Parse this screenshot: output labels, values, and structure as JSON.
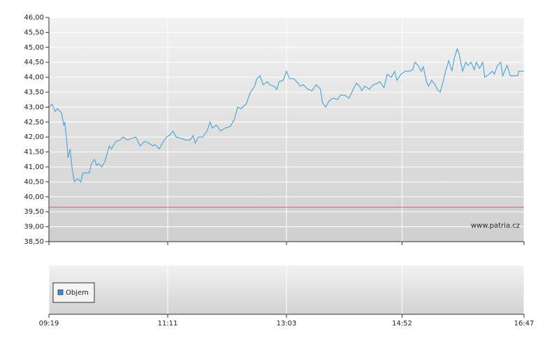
{
  "chart_data": [
    {
      "type": "line",
      "color": "#55a7d6",
      "grid": true,
      "watermark": "www.patria.cz",
      "reference_line": 39.65,
      "reference_color": "#e05a5a",
      "xlim": [
        "09:19",
        "16:47"
      ],
      "xticks": [
        "09:19",
        "11:11",
        "13:03",
        "14:52",
        "16:47"
      ],
      "ylim": [
        38.5,
        46
      ],
      "yticks": [
        {
          "value": 38.5,
          "label": "38,50"
        },
        {
          "value": 39,
          "label": "39,00"
        },
        {
          "value": 39.5,
          "label": "39,50"
        },
        {
          "value": 40,
          "label": "40,00"
        },
        {
          "value": 40.5,
          "label": "40,50"
        },
        {
          "value": 41,
          "label": "41,00"
        },
        {
          "value": 41.5,
          "label": "41,50"
        },
        {
          "value": 42,
          "label": "42,00"
        },
        {
          "value": 42.5,
          "label": "42,50"
        },
        {
          "value": 43,
          "label": "43,00"
        },
        {
          "value": 43.5,
          "label": "43,50"
        },
        {
          "value": 44,
          "label": "44,00"
        },
        {
          "value": 44.5,
          "label": "44,50"
        },
        {
          "value": 45,
          "label": "45,00"
        },
        {
          "value": 45.5,
          "label": "45,50"
        },
        {
          "value": 46,
          "label": "46,00"
        }
      ],
      "x": [
        "09:19",
        "09:22",
        "09:25",
        "09:27",
        "09:31",
        "09:33",
        "09:34",
        "09:36",
        "09:37",
        "09:39",
        "09:41",
        "09:43",
        "09:46",
        "09:49",
        "09:51",
        "09:57",
        "09:59",
        "10:02",
        "10:04",
        "10:06",
        "10:09",
        "10:12",
        "10:16",
        "10:18",
        "10:22",
        "10:26",
        "10:29",
        "10:33",
        "10:37",
        "10:41",
        "10:45",
        "10:49",
        "10:53",
        "10:57",
        "10:59",
        "11:03",
        "11:06",
        "11:10",
        "11:14",
        "11:16",
        "11:19",
        "11:24",
        "11:28",
        "11:32",
        "11:35",
        "11:37",
        "11:40",
        "11:44",
        "11:48",
        "11:51",
        "11:53",
        "11:57",
        "12:01",
        "12:05",
        "12:10",
        "12:14",
        "12:17",
        "12:20",
        "12:25",
        "12:29",
        "12:33",
        "12:35",
        "12:38",
        "12:41",
        "12:45",
        "12:47",
        "12:51",
        "12:54",
        "12:56",
        "13:00",
        "13:03",
        "13:06",
        "13:10",
        "13:14",
        "13:16",
        "13:19",
        "13:23",
        "13:27",
        "13:31",
        "13:35",
        "13:37",
        "13:40",
        "13:43",
        "13:47",
        "13:51",
        "13:54",
        "13:58",
        "14:02",
        "14:06",
        "14:09",
        "14:12",
        "14:14",
        "14:17",
        "14:21",
        "14:25",
        "14:29",
        "14:31",
        "14:35",
        "14:38",
        "14:42",
        "14:45",
        "14:47",
        "14:51",
        "14:55",
        "14:59",
        "15:02",
        "15:04",
        "15:07",
        "15:10",
        "15:12",
        "15:15",
        "15:17",
        "15:20",
        "15:23",
        "15:25",
        "15:28",
        "15:31",
        "15:33",
        "15:36",
        "15:39",
        "15:41",
        "15:44",
        "15:46",
        "15:49",
        "15:52",
        "15:54",
        "15:57",
        "16:00",
        "16:02",
        "16:05",
        "16:08",
        "16:10",
        "16:14",
        "16:17",
        "16:19",
        "16:22",
        "16:25",
        "16:27",
        "16:31",
        "16:34",
        "16:41",
        "16:42",
        "16:47"
      ],
      "values": [
        43.0,
        43.1,
        42.85,
        42.95,
        42.8,
        42.4,
        42.5,
        41.8,
        41.3,
        41.6,
        40.9,
        40.5,
        40.6,
        40.5,
        40.8,
        40.8,
        41.1,
        41.25,
        41.05,
        41.1,
        41.0,
        41.2,
        41.7,
        41.6,
        41.85,
        41.9,
        42.0,
        41.9,
        41.95,
        42.0,
        41.7,
        41.85,
        41.8,
        41.7,
        41.75,
        41.6,
        41.8,
        42.0,
        42.1,
        42.2,
        42.0,
        41.95,
        41.9,
        41.9,
        42.05,
        41.8,
        42.0,
        42.0,
        42.2,
        42.5,
        42.3,
        42.4,
        42.2,
        42.3,
        42.35,
        42.6,
        43.0,
        42.95,
        43.1,
        43.5,
        43.7,
        43.95,
        44.05,
        43.75,
        43.85,
        43.75,
        43.7,
        43.6,
        43.85,
        43.9,
        44.2,
        43.95,
        43.95,
        43.8,
        43.7,
        43.75,
        43.6,
        43.55,
        43.75,
        43.6,
        43.15,
        43.0,
        43.2,
        43.3,
        43.25,
        43.4,
        43.4,
        43.3,
        43.6,
        43.8,
        43.7,
        43.55,
        43.7,
        43.6,
        43.75,
        43.8,
        43.85,
        43.65,
        44.1,
        44.0,
        44.2,
        43.9,
        44.1,
        44.2,
        44.2,
        44.25,
        44.5,
        44.4,
        44.2,
        44.35,
        43.85,
        43.7,
        43.9,
        43.75,
        43.6,
        43.5,
        43.9,
        44.2,
        44.55,
        44.2,
        44.6,
        44.95,
        44.75,
        44.2,
        44.5,
        44.4,
        44.5,
        44.25,
        44.5,
        44.3,
        44.5,
        44.0,
        44.1,
        44.2,
        44.1,
        44.4,
        44.5,
        44.05,
        44.4,
        44.05,
        44.05,
        44.2,
        44.2
      ]
    },
    {
      "type": "bar",
      "grid": true,
      "legend": "top-left",
      "xlim": [
        "09:19",
        "16:47"
      ],
      "xticks": [
        "09:19",
        "11:11",
        "13:03",
        "14:52",
        "16:47"
      ],
      "series": [
        {
          "name": "Objem",
          "color": "#3f8fcf",
          "values": []
        }
      ]
    }
  ]
}
